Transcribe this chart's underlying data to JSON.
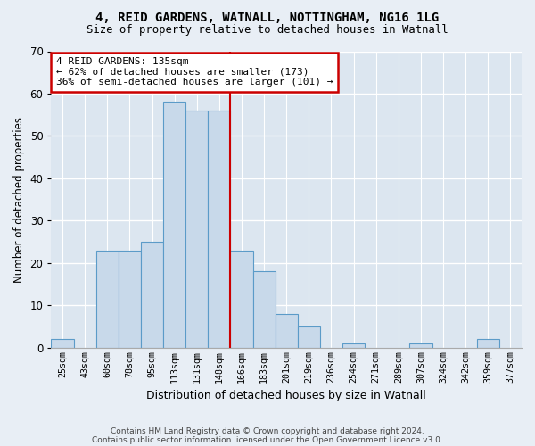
{
  "title1": "4, REID GARDENS, WATNALL, NOTTINGHAM, NG16 1LG",
  "title2": "Size of property relative to detached houses in Watnall",
  "xlabel": "Distribution of detached houses by size in Watnall",
  "ylabel": "Number of detached properties",
  "categories": [
    "25sqm",
    "43sqm",
    "60sqm",
    "78sqm",
    "95sqm",
    "113sqm",
    "131sqm",
    "148sqm",
    "166sqm",
    "183sqm",
    "201sqm",
    "219sqm",
    "236sqm",
    "254sqm",
    "271sqm",
    "289sqm",
    "307sqm",
    "324sqm",
    "342sqm",
    "359sqm",
    "377sqm"
  ],
  "values": [
    2,
    0,
    23,
    23,
    25,
    58,
    56,
    56,
    23,
    18,
    8,
    5,
    0,
    1,
    0,
    0,
    1,
    0,
    0,
    2,
    0
  ],
  "bar_color": "#c8d9ea",
  "bar_edge_color": "#5b9bc8",
  "bg_color": "#dce6f0",
  "fig_bg_color": "#e8eef5",
  "grid_color": "#ffffff",
  "annotation_text_line1": "4 REID GARDENS: 135sqm",
  "annotation_text_line2": "← 62% of detached houses are smaller (173)",
  "annotation_text_line3": "36% of semi-detached houses are larger (101) →",
  "annotation_box_edgecolor": "#cc0000",
  "vline_color": "#cc0000",
  "vline_x": 7.5,
  "ylim": [
    0,
    70
  ],
  "yticks": [
    0,
    10,
    20,
    30,
    40,
    50,
    60,
    70
  ],
  "footnote1": "Contains HM Land Registry data © Crown copyright and database right 2024.",
  "footnote2": "Contains public sector information licensed under the Open Government Licence v3.0."
}
